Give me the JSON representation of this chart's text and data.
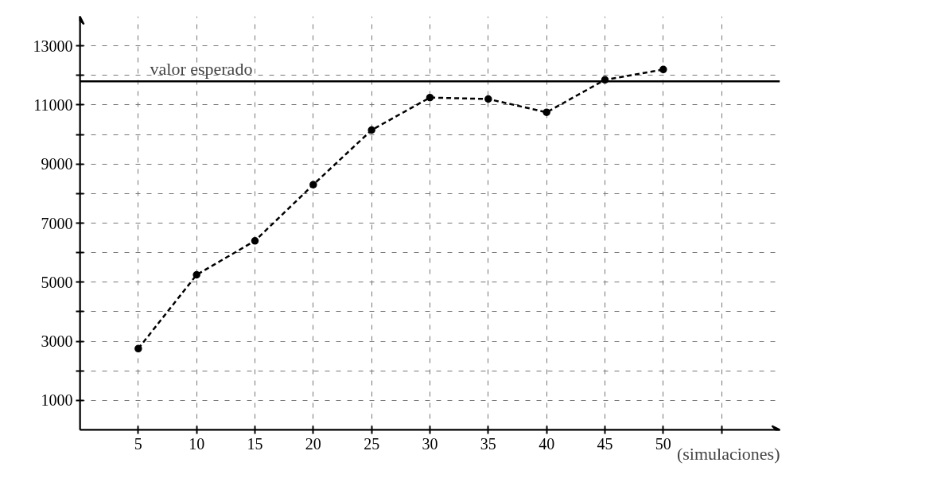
{
  "chart_data": {
    "type": "line",
    "xlabel": "(simulaciones)",
    "x": [
      5,
      10,
      15,
      20,
      25,
      30,
      35,
      40,
      45,
      50
    ],
    "series": [
      {
        "color": "#000000",
        "values": [
          2750,
          5250,
          6400,
          8300,
          10150,
          11250,
          11200,
          10750,
          11850,
          12200
        ]
      }
    ],
    "xlim": [
      0,
      60
    ],
    "ylim": [
      0,
      14000
    ],
    "xticks": [
      5,
      10,
      15,
      20,
      25,
      30,
      35,
      40,
      45,
      50,
      {
        "value": 55,
        "label": null
      }
    ],
    "yticks": [
      1000,
      {
        "value": 2000,
        "label": null
      },
      3000,
      {
        "value": 4000,
        "label": null
      },
      5000,
      {
        "value": 6000,
        "label": null
      },
      7000,
      {
        "value": 8000,
        "label": null
      },
      9000,
      {
        "value": 10000,
        "label": null
      },
      11000,
      {
        "value": 12000,
        "label": null
      },
      13000
    ],
    "ref_lines": [
      {
        "axis": "y",
        "value": 11800,
        "label": "valor esperado",
        "color": "#000000",
        "line_style": "solid"
      }
    ],
    "grid": true,
    "marker": "circle",
    "line_style": "dashed"
  }
}
